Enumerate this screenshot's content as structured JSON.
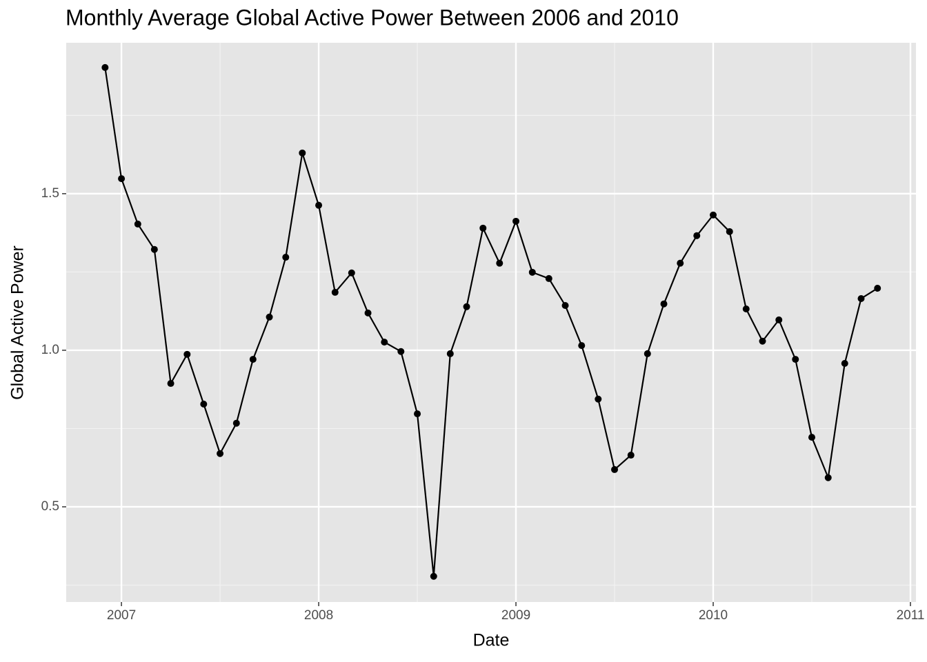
{
  "chart_data": {
    "type": "line",
    "title": "Monthly Average Global Active Power Between 2006 and 2010",
    "xlabel": "Date",
    "ylabel": "Global Active Power",
    "x": [
      2006.917,
      2007.0,
      2007.083,
      2007.167,
      2007.25,
      2007.333,
      2007.417,
      2007.5,
      2007.583,
      2007.667,
      2007.75,
      2007.833,
      2007.917,
      2008.0,
      2008.083,
      2008.167,
      2008.25,
      2008.333,
      2008.417,
      2008.5,
      2008.583,
      2008.667,
      2008.75,
      2008.833,
      2008.917,
      2009.0,
      2009.083,
      2009.167,
      2009.25,
      2009.333,
      2009.417,
      2009.5,
      2009.583,
      2009.667,
      2009.75,
      2009.833,
      2009.917,
      2010.0,
      2010.083,
      2010.167,
      2010.25,
      2010.333,
      2010.417,
      2010.5,
      2010.583,
      2010.667,
      2010.75,
      2010.833
    ],
    "series": [
      {
        "name": "Global Active Power",
        "color": "#000000",
        "values": [
          1.903,
          1.548,
          1.403,
          1.322,
          0.894,
          0.987,
          0.828,
          0.67,
          0.767,
          0.971,
          1.106,
          1.297,
          1.63,
          1.463,
          1.185,
          1.247,
          1.119,
          1.026,
          0.996,
          0.797,
          0.278,
          0.989,
          1.139,
          1.39,
          1.278,
          1.412,
          1.249,
          1.229,
          1.143,
          1.015,
          0.844,
          0.619,
          0.665,
          0.989,
          1.148,
          1.278,
          1.366,
          1.432,
          1.379,
          1.132,
          1.029,
          1.097,
          0.971,
          0.722,
          0.593,
          0.958,
          1.165,
          1.198
        ]
      }
    ],
    "xlim": [
      2006.72,
      2011.028
    ],
    "xticks": [
      2007,
      2008,
      2009,
      2010,
      2011
    ],
    "ylim": [
      0.196,
      1.982
    ],
    "yticks": [
      0.5,
      {
        "value": 1.0,
        "label": "1.0"
      },
      1.5
    ],
    "grid": true
  }
}
